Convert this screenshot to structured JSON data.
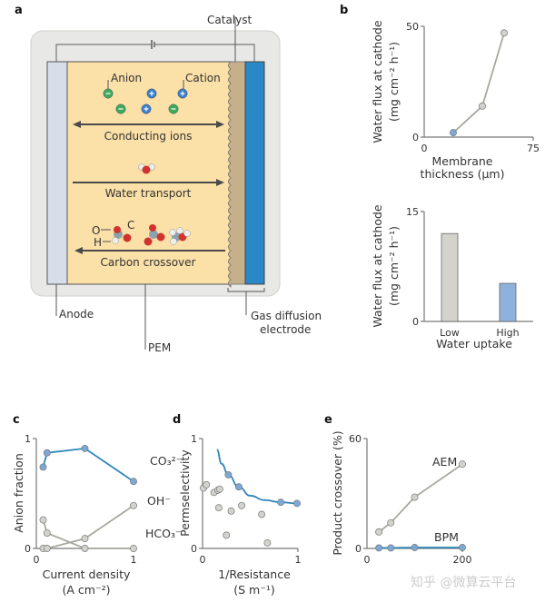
{
  "panel_labels": [
    "a",
    "b",
    "c",
    "d",
    "e"
  ],
  "diagram": {
    "labels": {
      "catalyst": "Catalyst",
      "anion": "Anion",
      "cation": "Cation",
      "conducting_ions": "Conducting ions",
      "water_transport": "Water transport",
      "carbon_crossover": "Carbon crossover",
      "atom_o": "O",
      "atom_c": "C",
      "atom_h": "H",
      "anode": "Anode",
      "pem": "PEM",
      "gde_line1": "Gas diffusion",
      "gde_line2": "electrode"
    },
    "colors": {
      "pem": "#fbe0a8",
      "anode": "#d6dfe9",
      "catalyst": "#c6b08c",
      "gde": "#2a88c6",
      "anion": "#3daa5c",
      "cation": "#3a7fc9",
      "housing": "#e8e8e6"
    }
  },
  "watermark": "知乎 @微算云平台",
  "chart_data": [
    {
      "type": "line",
      "panel": "b",
      "xlabel": [
        "Membrane",
        "thickness (μm)"
      ],
      "ylabel": [
        "Water flux at cathode",
        "(mg cm⁻² h⁻¹)"
      ],
      "xlim": [
        0,
        75
      ],
      "ylim": [
        0,
        50
      ],
      "xticks": [
        "0",
        "75"
      ],
      "yticks": [
        "0",
        "50"
      ],
      "series": [
        {
          "x": [
            20,
            40,
            55
          ],
          "y": [
            2,
            14,
            47
          ],
          "point_colors": [
            "#7ea8d4",
            "#d3d3ce",
            "#d3d3ce"
          ],
          "line_color": "#a8a8a0"
        }
      ]
    },
    {
      "type": "bar",
      "panel": "b",
      "categories": [
        "Low",
        "High"
      ],
      "values": [
        12,
        5.2
      ],
      "colors": [
        "#d3d3cc",
        "#8fb2dc"
      ],
      "xlabel": [
        "Water uptake"
      ],
      "ylabel": [
        "Water flux at cathode",
        "(mg cm⁻² h⁻¹)"
      ],
      "ylim": [
        0,
        15
      ],
      "yticks": [
        "0",
        "15"
      ]
    },
    {
      "type": "line",
      "panel": "c",
      "xlabel": [
        "Current density",
        "(A cm⁻²)"
      ],
      "ylabel": [
        "Anion fraction"
      ],
      "xlim": [
        0,
        1
      ],
      "ylim": [
        0,
        1
      ],
      "xticks": [
        "0",
        "1"
      ],
      "yticks": [
        "0",
        "1"
      ],
      "series": [
        {
          "name": "CO₃²⁻",
          "x": [
            0.07,
            0.11,
            0.5,
            1
          ],
          "y": [
            0.74,
            0.87,
            0.91,
            0.61
          ],
          "color": "#2f86b8",
          "point_color": "#7ea8d4"
        },
        {
          "name": "OH⁻",
          "x": [
            0.07,
            0.11,
            0.5,
            1
          ],
          "y": [
            0,
            0,
            0.09,
            0.39
          ],
          "color": "#a8a8a0",
          "point_color": "#d3d3ce"
        },
        {
          "name": "HCO₃⁻",
          "x": [
            0.07,
            0.11,
            0.5,
            1
          ],
          "y": [
            0.26,
            0.14,
            0,
            0
          ],
          "color": "#a8a8a0",
          "point_color": "#d3d3ce"
        }
      ]
    },
    {
      "type": "scatter",
      "panel": "d",
      "xlabel": [
        "1/Resistance",
        "(S m⁻¹)"
      ],
      "ylabel": [
        "Permselectivity"
      ],
      "xlim": [
        0,
        1
      ],
      "ylim": [
        0,
        1
      ],
      "xticks": [
        "0",
        "1"
      ],
      "yticks": [
        "0",
        "1"
      ],
      "series": [
        {
          "x": [
            0.27,
            0.38,
            0.82,
            0.99
          ],
          "y": [
            0.67,
            0.56,
            0.42,
            0.41
          ],
          "color": "#2f86b8",
          "point_color": "#7ea8d4",
          "trend": {
            "x": [
              0.15,
              0.2,
              0.27,
              0.38,
              0.5,
              0.65,
              0.82,
              0.99
            ],
            "y": [
              0.9,
              0.77,
              0.67,
              0.56,
              0.48,
              0.44,
              0.42,
              0.41
            ]
          }
        },
        {
          "x": [
            0.01,
            0.04,
            0.12,
            0.16,
            0.18,
            0.17,
            0.3,
            0.41,
            0.25,
            0.62,
            0.68
          ],
          "y": [
            0.55,
            0.58,
            0.51,
            0.53,
            0.54,
            0.37,
            0.34,
            0.39,
            0.12,
            0.31,
            0.05
          ],
          "point_color": "#d3d3ce"
        }
      ]
    },
    {
      "type": "line",
      "panel": "e",
      "xlabel": [],
      "ylabel": [
        "Product crossover (%)"
      ],
      "xlim": [
        0,
        200
      ],
      "ylim": [
        0,
        60
      ],
      "xticks": [
        "0",
        "200"
      ],
      "yticks": [
        "0",
        "60"
      ],
      "series": [
        {
          "name": "AEM",
          "x": [
            25,
            50,
            100,
            200
          ],
          "y": [
            9,
            14,
            28,
            46
          ],
          "color": "#a8a8a0",
          "point_color": "#d3d3ce"
        },
        {
          "name": "BPM",
          "x": [
            25,
            50,
            100,
            200
          ],
          "y": [
            0.3,
            0.3,
            0.5,
            0.5
          ],
          "color": "#2f86b8",
          "point_color": "#7ea8d4"
        }
      ]
    }
  ]
}
